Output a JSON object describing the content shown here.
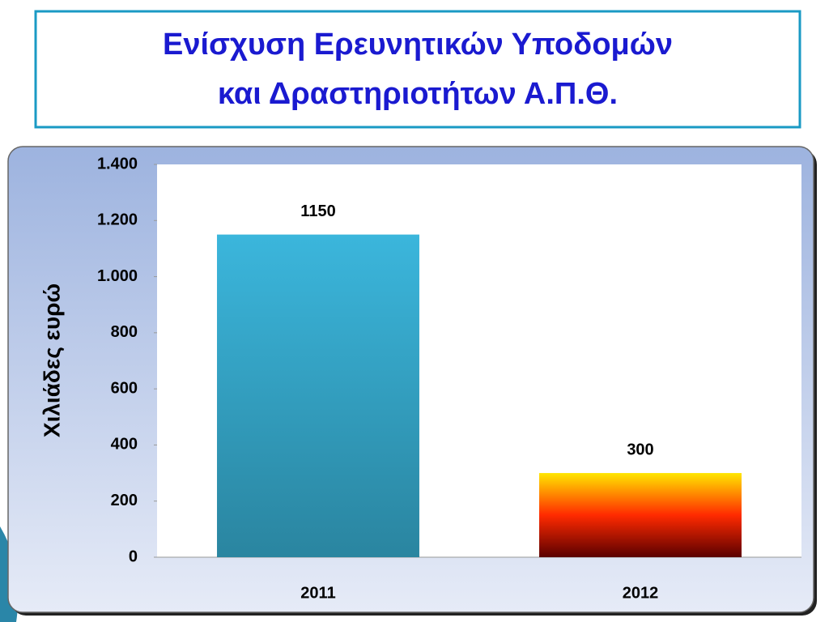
{
  "chart_data": {
    "type": "bar",
    "title": [
      "Ενίσχυση Ερευνητικών Υποδομών",
      "και Δραστηριοτήτων Α.Π.Θ."
    ],
    "ylabel": "Χιλιάδες  ευρώ",
    "categories": [
      "2011",
      "2012"
    ],
    "values": [
      1150,
      300
    ],
    "colors": [
      [
        "#3bb6dc",
        "#2a85a0"
      ],
      [
        "#ffe600",
        "#ff2a00",
        "#5a0000"
      ]
    ],
    "ylim": [
      0,
      1400
    ],
    "yticks": [
      0,
      200,
      400,
      600,
      800,
      {
        "value": 1000,
        "label": "1.000"
      },
      {
        "value": 1200,
        "label": "1.200"
      },
      {
        "value": 1400,
        "label": "1.400"
      }
    ],
    "grid": false
  }
}
